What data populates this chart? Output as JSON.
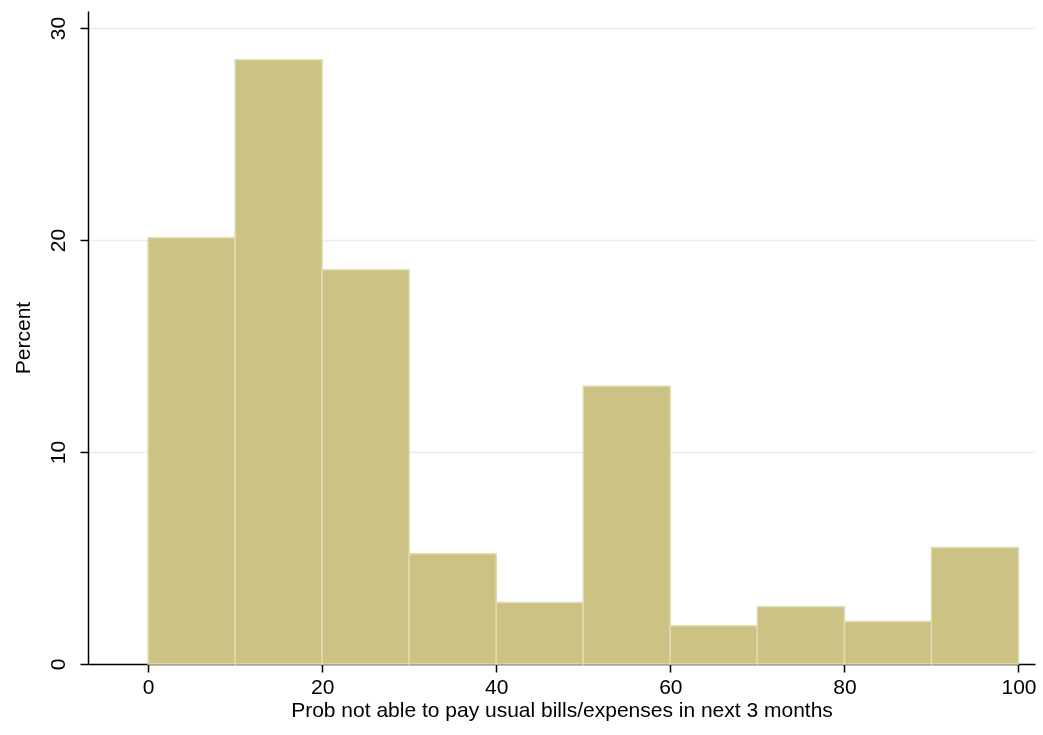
{
  "chart_data": {
    "type": "histogram",
    "xlabel": "Prob not able to pay usual bills/expenses in next 3 months",
    "ylabel": "Percent",
    "bins": [
      0,
      10,
      20,
      30,
      40,
      50,
      60,
      70,
      80,
      90,
      100
    ],
    "values": [
      20.1,
      28.5,
      18.6,
      5.2,
      2.9,
      13.1,
      1.8,
      2.7,
      2.0,
      5.5
    ],
    "color": "#cbc283",
    "xlim": [
      -6.9,
      101.9
    ],
    "xticks": [
      0,
      20,
      40,
      60,
      80,
      100
    ],
    "ylim": [
      0,
      30.8
    ],
    "yticks": [
      0,
      10,
      20,
      30
    ],
    "grid": "y"
  }
}
